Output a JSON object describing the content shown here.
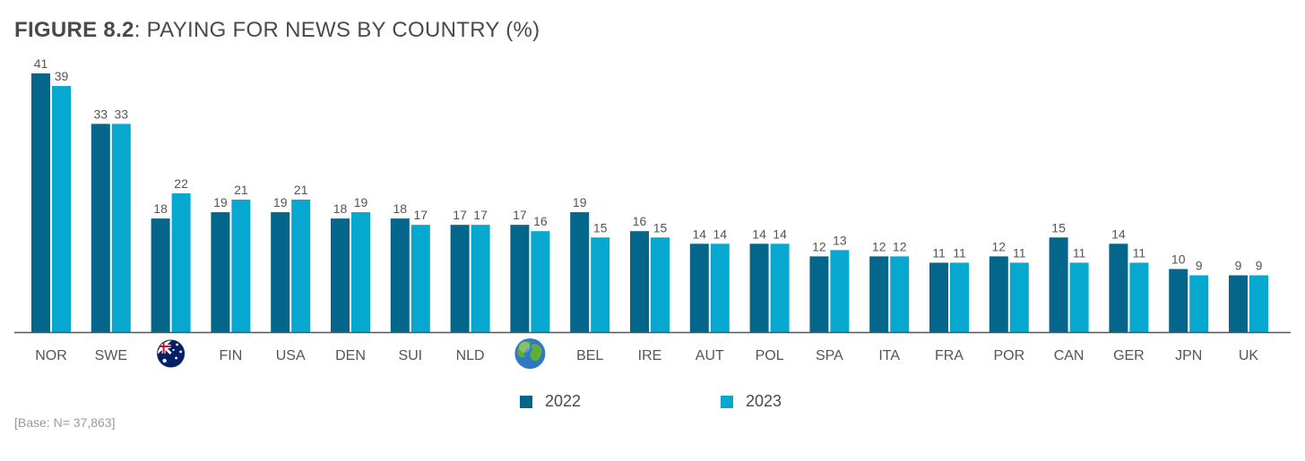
{
  "title": {
    "prefix": "FIGURE 8.2",
    "text": ": PAYING FOR NEWS BY COUNTRY (%)"
  },
  "base_note": "[Base: N= 37,863]",
  "colors": {
    "series2022": "#04668a",
    "series2023": "#06a8d0",
    "axis": "#555555",
    "label": "#555555"
  },
  "chart_data": {
    "type": "bar",
    "title": "FIGURE 8.2: PAYING FOR NEWS BY COUNTRY (%)",
    "categories": [
      "NOR",
      "SWE",
      "",
      "FIN",
      "USA",
      "DEN",
      "SUI",
      "NLD",
      "",
      "BEL",
      "IRE",
      "AUT",
      "POL",
      "SPA",
      "ITA",
      "FRA",
      "POR",
      "CAN",
      "GER",
      "JPN",
      "UK"
    ],
    "category_icons": {
      "2": "australia-flag-icon",
      "8": "globe-icon"
    },
    "series": [
      {
        "name": "2022",
        "values": [
          41,
          33,
          18,
          19,
          19,
          18,
          18,
          17,
          17,
          19,
          16,
          14,
          14,
          12,
          12,
          11,
          12,
          15,
          14,
          10,
          9
        ]
      },
      {
        "name": "2023",
        "values": [
          39,
          33,
          22,
          21,
          21,
          19,
          17,
          17,
          16,
          15,
          15,
          14,
          14,
          13,
          12,
          11,
          11,
          11,
          11,
          9,
          9
        ]
      }
    ],
    "ylim": [
      0,
      41
    ],
    "grid": false,
    "legend_position": "bottom-center"
  }
}
